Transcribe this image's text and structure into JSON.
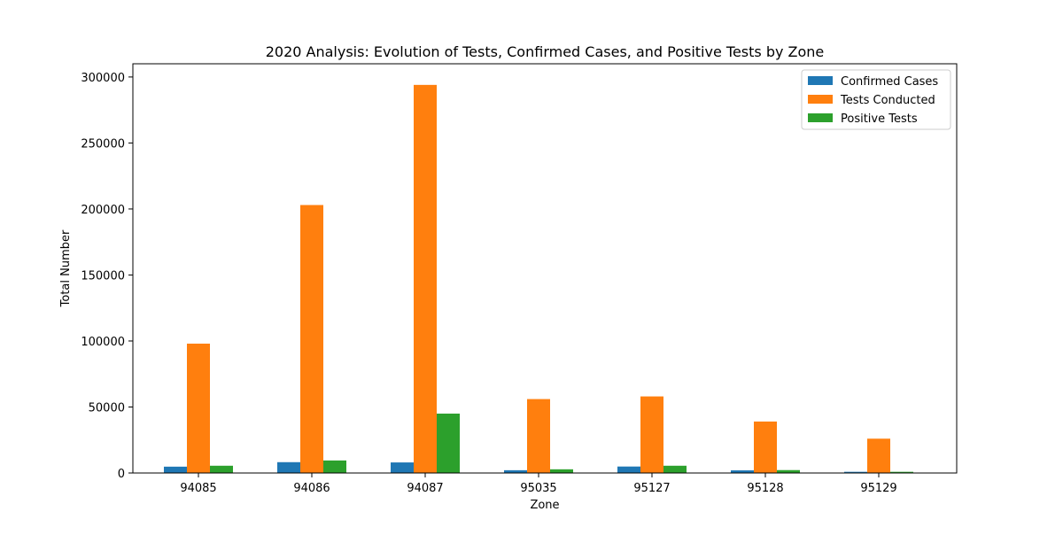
{
  "chart_data": {
    "type": "bar",
    "title": "2020 Analysis: Evolution of Tests, Confirmed Cases, and Positive Tests by Zone",
    "xlabel": "Zone",
    "ylabel": "Total Number",
    "categories": [
      "94085",
      "94086",
      "94087",
      "95035",
      "95127",
      "95128",
      "95129"
    ],
    "ylim": [
      0,
      310000
    ],
    "yticks": [
      0,
      50000,
      100000,
      150000,
      200000,
      250000,
      300000
    ],
    "ytick_labels": [
      "0",
      "50000",
      "100000",
      "150000",
      "200000",
      "250000",
      "300000"
    ],
    "grid": false,
    "legend_position": "top-right",
    "series": [
      {
        "name": "Confirmed Cases",
        "color": "#1f77b4",
        "values": [
          4800,
          8200,
          8000,
          2100,
          4900,
          2000,
          900
        ]
      },
      {
        "name": "Tests Conducted",
        "color": "#ff7f0e",
        "values": [
          98000,
          203000,
          294000,
          56000,
          58000,
          39000,
          26000
        ]
      },
      {
        "name": "Positive Tests",
        "color": "#2ca02c",
        "values": [
          5500,
          9500,
          45000,
          2800,
          5500,
          2200,
          900
        ]
      }
    ]
  }
}
